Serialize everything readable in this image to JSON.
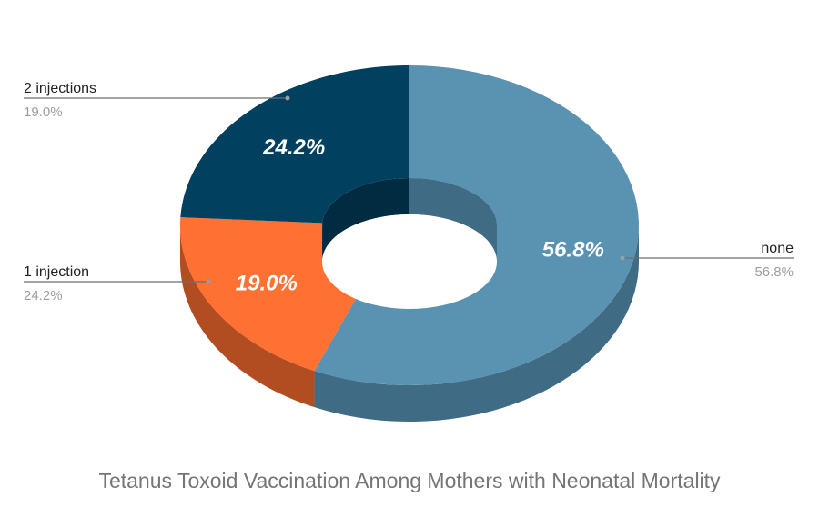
{
  "chart_data": {
    "type": "pie",
    "style": "3d-donut",
    "title": "Tetanus Toxoid Vaccination Among Mothers with Neonatal Mortality",
    "categories": [
      "none",
      "2 injections",
      "1 injection"
    ],
    "values": [
      56.8,
      19.0,
      24.2
    ],
    "labels": [
      "56.8%",
      "19.0%",
      "24.2%"
    ],
    "colors": [
      "#5a92b1",
      "#ff7033",
      "#02405f"
    ],
    "side_colors": [
      "#3f6b84",
      "#b24d22",
      "#012b40"
    ],
    "legend": "outside-with-leader-lines"
  }
}
